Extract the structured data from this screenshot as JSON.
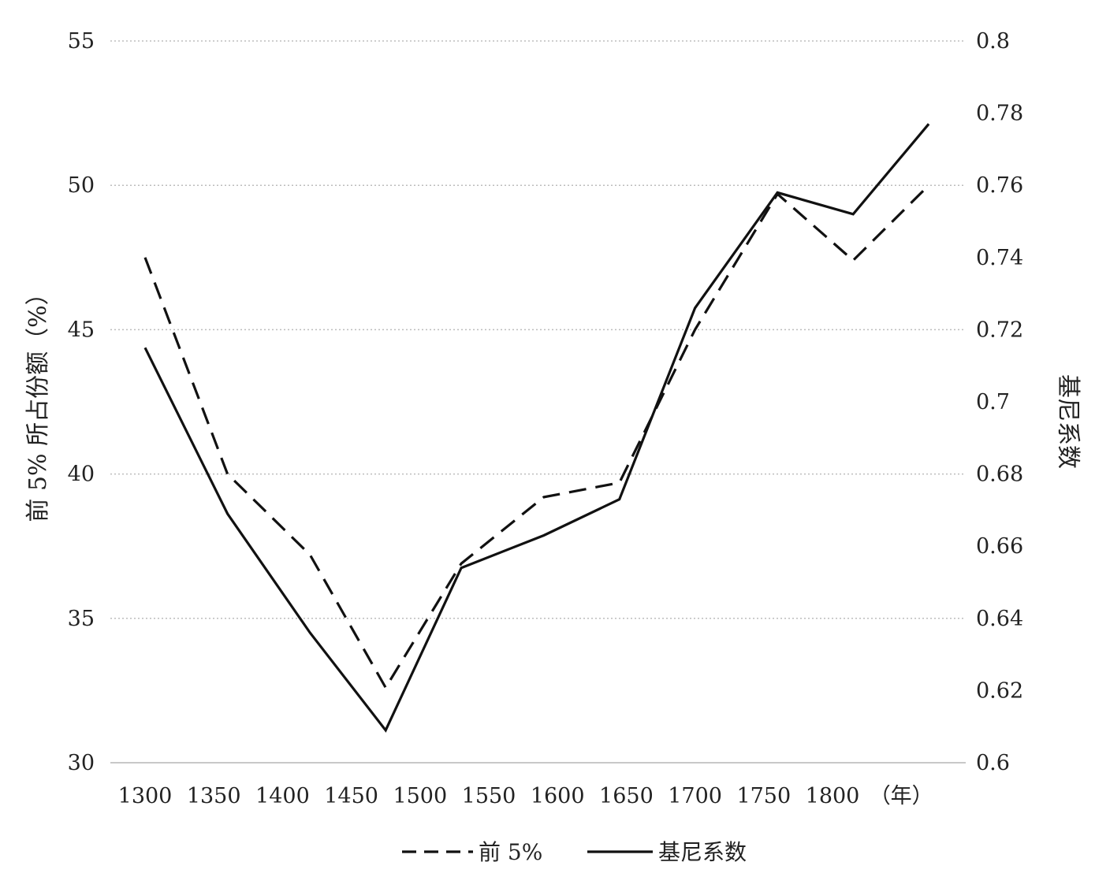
{
  "chart_data": {
    "type": "line",
    "x_categories": [
      "1300",
      "1350",
      "1400",
      "1450",
      "1500",
      "1550",
      "1600",
      "1650",
      "1700",
      "1750",
      "1800"
    ],
    "x_unit_label": "（年）",
    "left_axis": {
      "label": "前 5% 所占份额（%）",
      "ylim": [
        30,
        55
      ],
      "ticks": [
        "30",
        "35",
        "40",
        "45",
        "50",
        "55"
      ]
    },
    "right_axis": {
      "label": "基尼系数",
      "ylim": [
        0.6,
        0.8
      ],
      "ticks": [
        "0.6",
        "0.62",
        "0.64",
        "0.66",
        "0.68",
        "0.7",
        "0.72",
        "0.74",
        "0.76",
        "0.78",
        "0.8"
      ]
    },
    "series": [
      {
        "name": "前 5%",
        "axis": "left",
        "style": "dashed",
        "color": "#111111",
        "points": [
          {
            "x": 1300,
            "y": 47.5
          },
          {
            "x": 1360,
            "y": 40.0
          },
          {
            "x": 1420,
            "y": 37.2
          },
          {
            "x": 1475,
            "y": 32.6
          },
          {
            "x": 1530,
            "y": 36.9
          },
          {
            "x": 1590,
            "y": 39.2
          },
          {
            "x": 1645,
            "y": 39.7
          },
          {
            "x": 1700,
            "y": 45.0
          },
          {
            "x": 1760,
            "y": 49.7
          },
          {
            "x": 1815,
            "y": 47.4
          },
          {
            "x": 1870,
            "y": 50.0
          }
        ]
      },
      {
        "name": "基尼系数",
        "axis": "right",
        "style": "solid",
        "color": "#111111",
        "points": [
          {
            "x": 1300,
            "y": 0.715
          },
          {
            "x": 1360,
            "y": 0.669
          },
          {
            "x": 1420,
            "y": 0.636
          },
          {
            "x": 1475,
            "y": 0.609
          },
          {
            "x": 1530,
            "y": 0.654
          },
          {
            "x": 1590,
            "y": 0.663
          },
          {
            "x": 1645,
            "y": 0.673
          },
          {
            "x": 1700,
            "y": 0.726
          },
          {
            "x": 1760,
            "y": 0.758
          },
          {
            "x": 1815,
            "y": 0.752
          },
          {
            "x": 1870,
            "y": 0.777
          }
        ]
      }
    ],
    "grid": true,
    "legend_position": "bottom-center"
  }
}
